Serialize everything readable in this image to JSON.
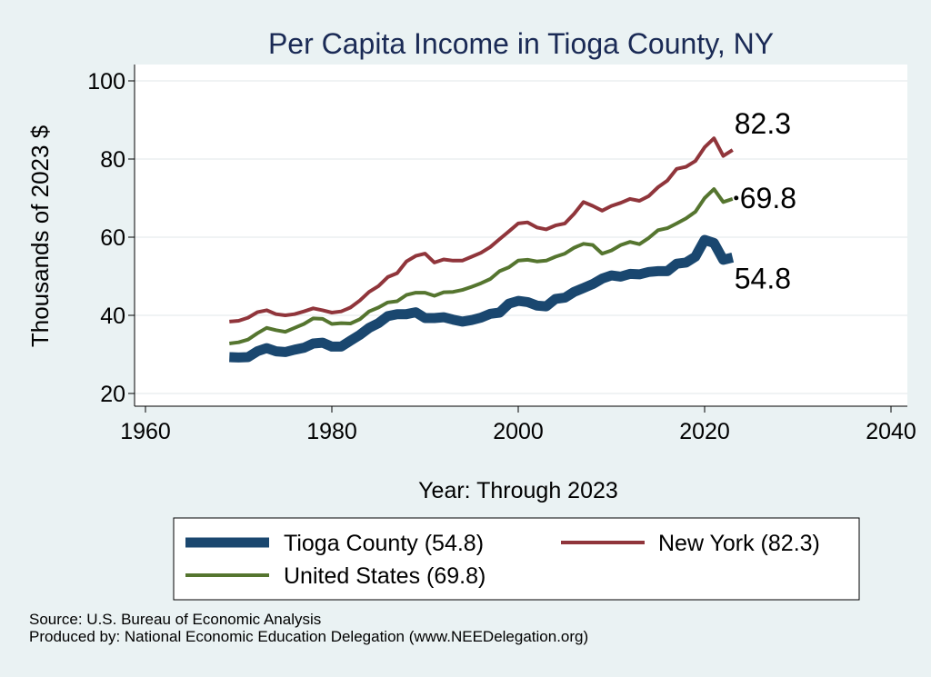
{
  "chart_data": {
    "type": "line",
    "title": "Per Capita Income in Tioga County, NY",
    "xlabel": "Year: Through 2023",
    "ylabel": "Thousands of 2023 $",
    "xlim": [
      1960,
      2040
    ],
    "ylim": [
      20,
      100
    ],
    "x_ticks": [
      1960,
      1980,
      2000,
      2020,
      2040
    ],
    "y_ticks": [
      20,
      40,
      60,
      80,
      100
    ],
    "x_tick_labels": [
      "1960",
      "1980",
      "2000",
      "2020",
      "2040"
    ],
    "y_tick_labels": [
      "20",
      "40",
      "60",
      "80",
      "100"
    ],
    "grid": true,
    "x": [
      1969,
      1970,
      1971,
      1972,
      1973,
      1974,
      1975,
      1976,
      1977,
      1978,
      1979,
      1980,
      1981,
      1982,
      1983,
      1984,
      1985,
      1986,
      1987,
      1988,
      1989,
      1990,
      1991,
      1992,
      1993,
      1994,
      1995,
      1996,
      1997,
      1998,
      1999,
      2000,
      2001,
      2002,
      2003,
      2004,
      2005,
      2006,
      2007,
      2008,
      2009,
      2010,
      2011,
      2012,
      2013,
      2014,
      2015,
      2016,
      2017,
      2018,
      2019,
      2020,
      2021,
      2022,
      2023
    ],
    "series": [
      {
        "name": "Tioga County",
        "legend_label": "Tioga County (54.8)",
        "end_label": "54.8",
        "color": "#1a476f",
        "values": [
          29.3,
          29.2,
          29.3,
          30.8,
          31.6,
          30.8,
          30.6,
          31.2,
          31.7,
          32.8,
          33.0,
          32.0,
          32.0,
          33.5,
          35.0,
          36.8,
          38.0,
          39.8,
          40.3,
          40.3,
          40.8,
          39.3,
          39.3,
          39.5,
          38.9,
          38.4,
          38.8,
          39.4,
          40.4,
          40.7,
          43.0,
          43.7,
          43.4,
          42.5,
          42.3,
          44.2,
          44.5,
          46.0,
          47.0,
          48.0,
          49.4,
          50.2,
          49.9,
          50.6,
          50.5,
          51.1,
          51.3,
          51.3,
          53.2,
          53.5,
          55.0,
          59.3,
          58.5,
          54.2,
          54.8
        ]
      },
      {
        "name": "New York",
        "legend_label": "New York (82.3)",
        "end_label": "82.3",
        "color": "#90353b",
        "values": [
          38.4,
          38.6,
          39.4,
          40.8,
          41.3,
          40.3,
          40.0,
          40.3,
          41.0,
          41.8,
          41.3,
          40.7,
          41.0,
          42.0,
          43.8,
          46.0,
          47.5,
          49.8,
          50.8,
          53.8,
          55.2,
          55.8,
          53.5,
          54.3,
          54.0,
          54.0,
          55.0,
          56.0,
          57.5,
          59.5,
          61.5,
          63.5,
          63.8,
          62.5,
          62.0,
          63.0,
          63.5,
          66.0,
          69.0,
          68.0,
          66.8,
          68.0,
          68.8,
          69.8,
          69.3,
          70.5,
          72.8,
          74.5,
          77.5,
          78.0,
          79.5,
          83.0,
          85.3,
          80.8,
          82.3
        ]
      },
      {
        "name": "United States",
        "legend_label": "United States (69.8)",
        "end_label": "69.8",
        "color": "#55752f",
        "values": [
          32.8,
          33.1,
          33.8,
          35.4,
          36.8,
          36.2,
          35.8,
          36.8,
          37.8,
          39.2,
          39.1,
          37.8,
          38.0,
          37.9,
          39.0,
          41.0,
          42.0,
          43.3,
          43.6,
          45.2,
          45.8,
          45.8,
          45.0,
          45.9,
          46.0,
          46.5,
          47.3,
          48.2,
          49.3,
          51.3,
          52.3,
          54.0,
          54.2,
          53.8,
          54.0,
          55.0,
          55.8,
          57.3,
          58.3,
          58.0,
          55.8,
          56.6,
          58.0,
          58.8,
          58.2,
          59.8,
          61.8,
          62.3,
          63.5,
          64.8,
          66.5,
          70.0,
          72.3,
          69.0,
          69.8
        ]
      }
    ],
    "legend": "bottom"
  },
  "source": "Source: U.S. Bureau of Economic Analysis",
  "produced_by": "Produced by: National Economic Education Delegation (www.NEEDelegation.org)"
}
